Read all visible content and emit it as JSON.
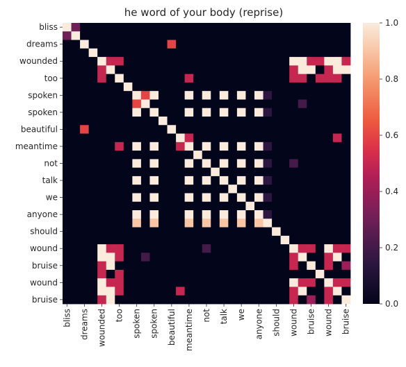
{
  "chart_data": {
    "type": "heatmap",
    "title": "he word of your body (reprise)",
    "row_labels": [
      "bliss",
      "",
      "dreams",
      "",
      "wounded",
      "",
      "too",
      "",
      "spoken",
      "",
      "spoken",
      "",
      "beautiful",
      "",
      "meantime",
      "",
      "not",
      "",
      "talk",
      "",
      "we",
      "",
      "anyone",
      "",
      "should",
      "",
      "wound",
      "",
      "bruise",
      "",
      "wound",
      "",
      "bruise"
    ],
    "col_labels": [
      "bliss",
      "",
      "dreams",
      "",
      "wounded",
      "",
      "too",
      "",
      "spoken",
      "",
      "spoken",
      "",
      "beautiful",
      "",
      "meantime",
      "",
      "not",
      "",
      "talk",
      "",
      "we",
      "",
      "anyone",
      "",
      "should",
      "",
      "wound",
      "",
      "bruise",
      "",
      "wound",
      "",
      "bruise"
    ],
    "colorbar": {
      "min": 0.0,
      "max": 1.0,
      "ticks": [
        "0.0",
        "0.2",
        "0.4",
        "0.6",
        "0.8",
        "1.0"
      ]
    },
    "values": [
      [
        1,
        0.3,
        0,
        0,
        0,
        0,
        0,
        0,
        0,
        0,
        0,
        0,
        0,
        0,
        0,
        0,
        0,
        0,
        0,
        0,
        0,
        0,
        0,
        0,
        0,
        0,
        0,
        0,
        0,
        0,
        0,
        0,
        0
      ],
      [
        0.3,
        1,
        0,
        0,
        0,
        0,
        0,
        0,
        0,
        0,
        0,
        0,
        0,
        0,
        0,
        0,
        0,
        0,
        0,
        0,
        0,
        0,
        0,
        0,
        0,
        0,
        0,
        0,
        0,
        0,
        0,
        0,
        0
      ],
      [
        0,
        0,
        1,
        0,
        0,
        0,
        0,
        0,
        0,
        0,
        0,
        0,
        0,
        0,
        0,
        0,
        0,
        0,
        0,
        0,
        0,
        0,
        0,
        0,
        0,
        0,
        0,
        0,
        0,
        0,
        0,
        0,
        0
      ],
      [
        0,
        0,
        0,
        1,
        0,
        0,
        0,
        0,
        0,
        0,
        0,
        0,
        0,
        0,
        0,
        0,
        0,
        0,
        0,
        0,
        0,
        0,
        0,
        0,
        0,
        0,
        0,
        0,
        0,
        0,
        0,
        0,
        0
      ],
      [
        0,
        0,
        0,
        0,
        1,
        0.5,
        0.5,
        0,
        0,
        0,
        0,
        0,
        0,
        0,
        0,
        0,
        0,
        0,
        0,
        0,
        0,
        0,
        0,
        0,
        0,
        0,
        0,
        0,
        0,
        0,
        0,
        0,
        0
      ],
      [
        0,
        0,
        0,
        0,
        0.5,
        1,
        0,
        0,
        0,
        0,
        0,
        0,
        0,
        0,
        0,
        0,
        0,
        0,
        0,
        0,
        0,
        0,
        0,
        0,
        0,
        0,
        0,
        0,
        0,
        0,
        0,
        0,
        0
      ],
      [
        0,
        0,
        0,
        0,
        0.5,
        0,
        1,
        0,
        0,
        0,
        0,
        0,
        0,
        0,
        0,
        0,
        0,
        0,
        0,
        0,
        0,
        0,
        0,
        0,
        0,
        0,
        0,
        0,
        0,
        0,
        0,
        0,
        0
      ],
      [
        0,
        0,
        0,
        0,
        0,
        0,
        0,
        1,
        0,
        0,
        0,
        0,
        0,
        0,
        0,
        0,
        0,
        0,
        0,
        0,
        0,
        0,
        0,
        0,
        0,
        0,
        0,
        0,
        0,
        0,
        0,
        0,
        0
      ],
      [
        0,
        0,
        0,
        0,
        0,
        0,
        0,
        0,
        1,
        0,
        1,
        0,
        0,
        0,
        0,
        0,
        0,
        0,
        0,
        0,
        0,
        0,
        0,
        0,
        0,
        0,
        0,
        0,
        0,
        0,
        0,
        0,
        0
      ],
      [
        0,
        0,
        0,
        0,
        0,
        0,
        0,
        0,
        0,
        1,
        0,
        0,
        0,
        0,
        0,
        0,
        0,
        0,
        0,
        0,
        0,
        0,
        0,
        0,
        0,
        0,
        0,
        0,
        0,
        0,
        0,
        0,
        0
      ],
      [
        0,
        0,
        0,
        0,
        0,
        0,
        0,
        0,
        1,
        0,
        1,
        0,
        0,
        0,
        0,
        0,
        0,
        0,
        0,
        0,
        0,
        0,
        0,
        0,
        0,
        0,
        0,
        0,
        0,
        0,
        0,
        0,
        0
      ],
      [
        0,
        0,
        0,
        0,
        0,
        0,
        0,
        0,
        0,
        0,
        0,
        1,
        0,
        0,
        0,
        0,
        0,
        0,
        0,
        0,
        0,
        0,
        0,
        0,
        0,
        0,
        0,
        0,
        0,
        0,
        0,
        0,
        0
      ],
      [
        0,
        0,
        0,
        0,
        0,
        0,
        0,
        0,
        0,
        0,
        0,
        0,
        1,
        0,
        0,
        0,
        0,
        0,
        0,
        0,
        0,
        0,
        0,
        0,
        0,
        0,
        0,
        0,
        0,
        0,
        0,
        0,
        0
      ],
      [
        0,
        0,
        0,
        0,
        0,
        0,
        0,
        0,
        0,
        0,
        0,
        0,
        0,
        1,
        0,
        0,
        0,
        0,
        0,
        0,
        0,
        0,
        0,
        0,
        0,
        0,
        0,
        0,
        0,
        0,
        0,
        0,
        0
      ],
      [
        0,
        0,
        0,
        0,
        0,
        0,
        0,
        0,
        0,
        0,
        0,
        0,
        0,
        0,
        1,
        0,
        0,
        0,
        0,
        0,
        0,
        0,
        0,
        0,
        0,
        0,
        0,
        0,
        0,
        0,
        0,
        0,
        0
      ],
      [
        0,
        0,
        0,
        0,
        0,
        0,
        0,
        0,
        0,
        0,
        0,
        0,
        0,
        0,
        0,
        1,
        0,
        0,
        0,
        0,
        0,
        0,
        0,
        0,
        0,
        0,
        0,
        0,
        0,
        0,
        0,
        0,
        0
      ],
      [
        0,
        0,
        0,
        0,
        0,
        0,
        0,
        0,
        0,
        0,
        0,
        0,
        0,
        0,
        0,
        0,
        1,
        0,
        0,
        0,
        0,
        0,
        0,
        0,
        0,
        0,
        0,
        0,
        0,
        0,
        0,
        0,
        0
      ],
      [
        0,
        0,
        0,
        0,
        0,
        0,
        0,
        0,
        0,
        0,
        0,
        0,
        0,
        0,
        0,
        0,
        0,
        1,
        0,
        0,
        0,
        0,
        0,
        0,
        0,
        0,
        0,
        0,
        0,
        0,
        0,
        0,
        0
      ],
      [
        0,
        0,
        0,
        0,
        0,
        0,
        0,
        0,
        0,
        0,
        0,
        0,
        0,
        0,
        0,
        0,
        0,
        0,
        1,
        0,
        0,
        0,
        0,
        0,
        0,
        0,
        0,
        0,
        0,
        0,
        0,
        0,
        0
      ],
      [
        0,
        0,
        0,
        0,
        0,
        0,
        0,
        0,
        0,
        0,
        0,
        0,
        0,
        0,
        0,
        0,
        0,
        0,
        0,
        1,
        0,
        0,
        0,
        0,
        0,
        0,
        0,
        0,
        0,
        0,
        0,
        0,
        0
      ],
      [
        0,
        0,
        0,
        0,
        0,
        0,
        0,
        0,
        0,
        0,
        0,
        0,
        0,
        0,
        0,
        0,
        0,
        0,
        0,
        0,
        1,
        0,
        0,
        0,
        0,
        0,
        0,
        0,
        0,
        0,
        0,
        0,
        0
      ],
      [
        0,
        0,
        0,
        0,
        0,
        0,
        0,
        0,
        0,
        0,
        0,
        0,
        0,
        0,
        0,
        0,
        0,
        0,
        0,
        0,
        0,
        1,
        0,
        0,
        0,
        0,
        0,
        0,
        0,
        0,
        0,
        0,
        0
      ],
      [
        0,
        0,
        0,
        0,
        0,
        0,
        0,
        0,
        0,
        0,
        0,
        0,
        0,
        0,
        0,
        0,
        0,
        0,
        0,
        0,
        0,
        0,
        1,
        0,
        0,
        0,
        0,
        0,
        0,
        0,
        0,
        0,
        0
      ],
      [
        0,
        0,
        0,
        0,
        0,
        0,
        0,
        0,
        0,
        0,
        0,
        0,
        0,
        0,
        0,
        0,
        0,
        0,
        0,
        0,
        0,
        0,
        0,
        1,
        0,
        0,
        0,
        0,
        0,
        0,
        0,
        0,
        0
      ],
      [
        0,
        0,
        0,
        0,
        0,
        0,
        0,
        0,
        0,
        0,
        0,
        0,
        0,
        0,
        0,
        0,
        0,
        0,
        0,
        0,
        0,
        0,
        0,
        0,
        1,
        0,
        0,
        0,
        0,
        0,
        0,
        0,
        0
      ],
      [
        0,
        0,
        0,
        0,
        0,
        0,
        0,
        0,
        0,
        0,
        0,
        0,
        0,
        0,
        0,
        0,
        0,
        0,
        0,
        0,
        0,
        0,
        0,
        0,
        0,
        1,
        0,
        0,
        0,
        0,
        0,
        0,
        0
      ],
      [
        0,
        0,
        0,
        0,
        0,
        0,
        0,
        0,
        0,
        0,
        0,
        0,
        0,
        0,
        0,
        0,
        0,
        0,
        0,
        0,
        0,
        0,
        0,
        0,
        0,
        0,
        1,
        0.5,
        0.5,
        0,
        1,
        0.5,
        0.5
      ],
      [
        0,
        0,
        0,
        0,
        0,
        0,
        0,
        0,
        0,
        0,
        0,
        0,
        0,
        0,
        0,
        0,
        0,
        0,
        0,
        0,
        0,
        0,
        0,
        0,
        0,
        0,
        0.5,
        1,
        0,
        0,
        0.5,
        1,
        0
      ],
      [
        0,
        0,
        0,
        0,
        0,
        0,
        0,
        0,
        0,
        0,
        0,
        0,
        0,
        0,
        0,
        0,
        0,
        0,
        0,
        0,
        0,
        0,
        0,
        0,
        0,
        0,
        0.5,
        0,
        1,
        0,
        0.5,
        0,
        0.4
      ],
      [
        0,
        0,
        0,
        0,
        0,
        0,
        0,
        0,
        0,
        0,
        0,
        0,
        0,
        0,
        0,
        0,
        0,
        0,
        0,
        0,
        0,
        0,
        0,
        0,
        0,
        0,
        0,
        0,
        0,
        1,
        0,
        0,
        0
      ],
      [
        0,
        0,
        0,
        0,
        0,
        0,
        0,
        0,
        0,
        0,
        0,
        0,
        0,
        0,
        0,
        0,
        0,
        0,
        0,
        0,
        0,
        0,
        0,
        0,
        0,
        0,
        1,
        0.5,
        0.5,
        0,
        1,
        0.5,
        0.5
      ],
      [
        0,
        0,
        0,
        0,
        0,
        0,
        0,
        0,
        0,
        0,
        0,
        0,
        0,
        0,
        0,
        0,
        0,
        0,
        0,
        0,
        0,
        0,
        0,
        0,
        0,
        0,
        0.5,
        1,
        0,
        0,
        0.5,
        1,
        0
      ],
      [
        0,
        0,
        0,
        0,
        0,
        0,
        0,
        0,
        0,
        0,
        0,
        0,
        0,
        0,
        0,
        0,
        0,
        0,
        0,
        0,
        0,
        0,
        0,
        0,
        0,
        0,
        0.5,
        0,
        0.4,
        0,
        0.5,
        0,
        1
      ]
    ],
    "extra_cells": [
      [
        4,
        26,
        0.25
      ],
      [
        4,
        27,
        1
      ],
      [
        4,
        28,
        0.5
      ],
      [
        4,
        29,
        0.5
      ],
      [
        4,
        30,
        0
      ],
      [
        4,
        31,
        1
      ],
      [
        4,
        32,
        0.5
      ],
      [
        4,
        33,
        0.5
      ],
      [
        5,
        27,
        0.5
      ],
      [
        5,
        28,
        1
      ],
      [
        5,
        31,
        0.5
      ],
      [
        5,
        32,
        1
      ],
      [
        6,
        27,
        0.5
      ],
      [
        6,
        29,
        0.5
      ],
      [
        6,
        31,
        0.5
      ],
      [
        6,
        33,
        0.5
      ],
      [
        2,
        12,
        0.6
      ],
      [
        6,
        14,
        0.5
      ],
      [
        9,
        8,
        0.6
      ],
      [
        9,
        27,
        0.2
      ],
      [
        13,
        14,
        0.5
      ],
      [
        13,
        31,
        0.5
      ],
      [
        13,
        34,
        0.5
      ],
      [
        26,
        5,
        0.2
      ],
      [
        26,
        16,
        0.2
      ]
    ]
  }
}
